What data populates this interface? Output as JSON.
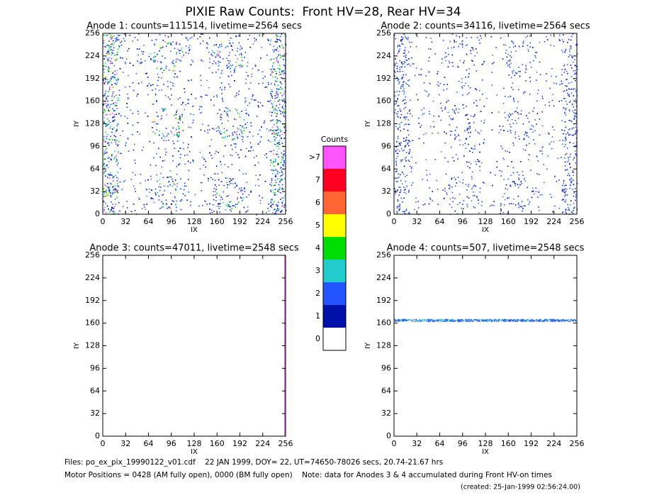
{
  "title": "PIXIE Raw Counts:  Front HV=28, Rear HV=34",
  "chart_data": [
    {
      "type": "heatmap",
      "title": "Anode 1: counts=111514, livetime=2564 secs",
      "xlabel": "IX",
      "ylabel": "IY",
      "xlim": [
        0,
        256
      ],
      "ylim": [
        0,
        256
      ],
      "xticks": [
        0,
        32,
        64,
        96,
        128,
        160,
        192,
        224,
        256
      ],
      "yticks": [
        0,
        32,
        64,
        96,
        128,
        160,
        192,
        224,
        256
      ]
    },
    {
      "type": "heatmap",
      "title": "Anode 2: counts=34116, livetime=2564 secs",
      "xlabel": "IX",
      "ylabel": "IY",
      "xlim": [
        0,
        256
      ],
      "ylim": [
        0,
        256
      ],
      "xticks": [
        0,
        32,
        64,
        96,
        128,
        160,
        192,
        224,
        256
      ],
      "yticks": [
        0,
        32,
        64,
        96,
        128,
        160,
        192,
        224,
        256
      ]
    },
    {
      "type": "heatmap",
      "title": "Anode 3: counts=47011, livetime=2548 secs",
      "xlabel": "IX",
      "ylabel": "IY",
      "xlim": [
        0,
        256
      ],
      "ylim": [
        0,
        256
      ],
      "xticks": [
        0,
        32,
        64,
        96,
        128,
        160,
        192,
        224,
        256
      ],
      "yticks": [
        0,
        32,
        64,
        96,
        128,
        160,
        192,
        224,
        256
      ]
    },
    {
      "type": "heatmap",
      "title": "Anode 4: counts=507, livetime=2548 secs",
      "xlabel": "IX",
      "ylabel": "IY",
      "xlim": [
        0,
        256
      ],
      "ylim": [
        0,
        256
      ],
      "xticks": [
        0,
        32,
        64,
        96,
        128,
        160,
        192,
        224,
        256
      ],
      "yticks": [
        0,
        32,
        64,
        96,
        128,
        160,
        192,
        224,
        256
      ]
    }
  ],
  "colorbar": {
    "title": "Counts",
    "labels": [
      ">7",
      "7",
      "6",
      "5",
      "4",
      "3",
      "2",
      "1",
      "0"
    ],
    "colors": [
      "#ff55ff",
      "#ff0022",
      "#ff6633",
      "#ffff00",
      "#00dd00",
      "#22cccc",
      "#2255ff",
      "#0011aa",
      "#ffffff"
    ]
  },
  "footer": {
    "files": "Files: po_ex_pix_19990122_v01.cdf    22 JAN 1999, DOY= 22, UT=74650-78026 secs, 20.74-21.67 hrs",
    "motor": "Motor Positions = 0428 (AM fully open), 0000 (BM fully open)    Note: data for Anodes 3 & 4 accumulated during Front HV-on times",
    "created": "(created: 25-Jan-1999 02:56:24.00)"
  }
}
